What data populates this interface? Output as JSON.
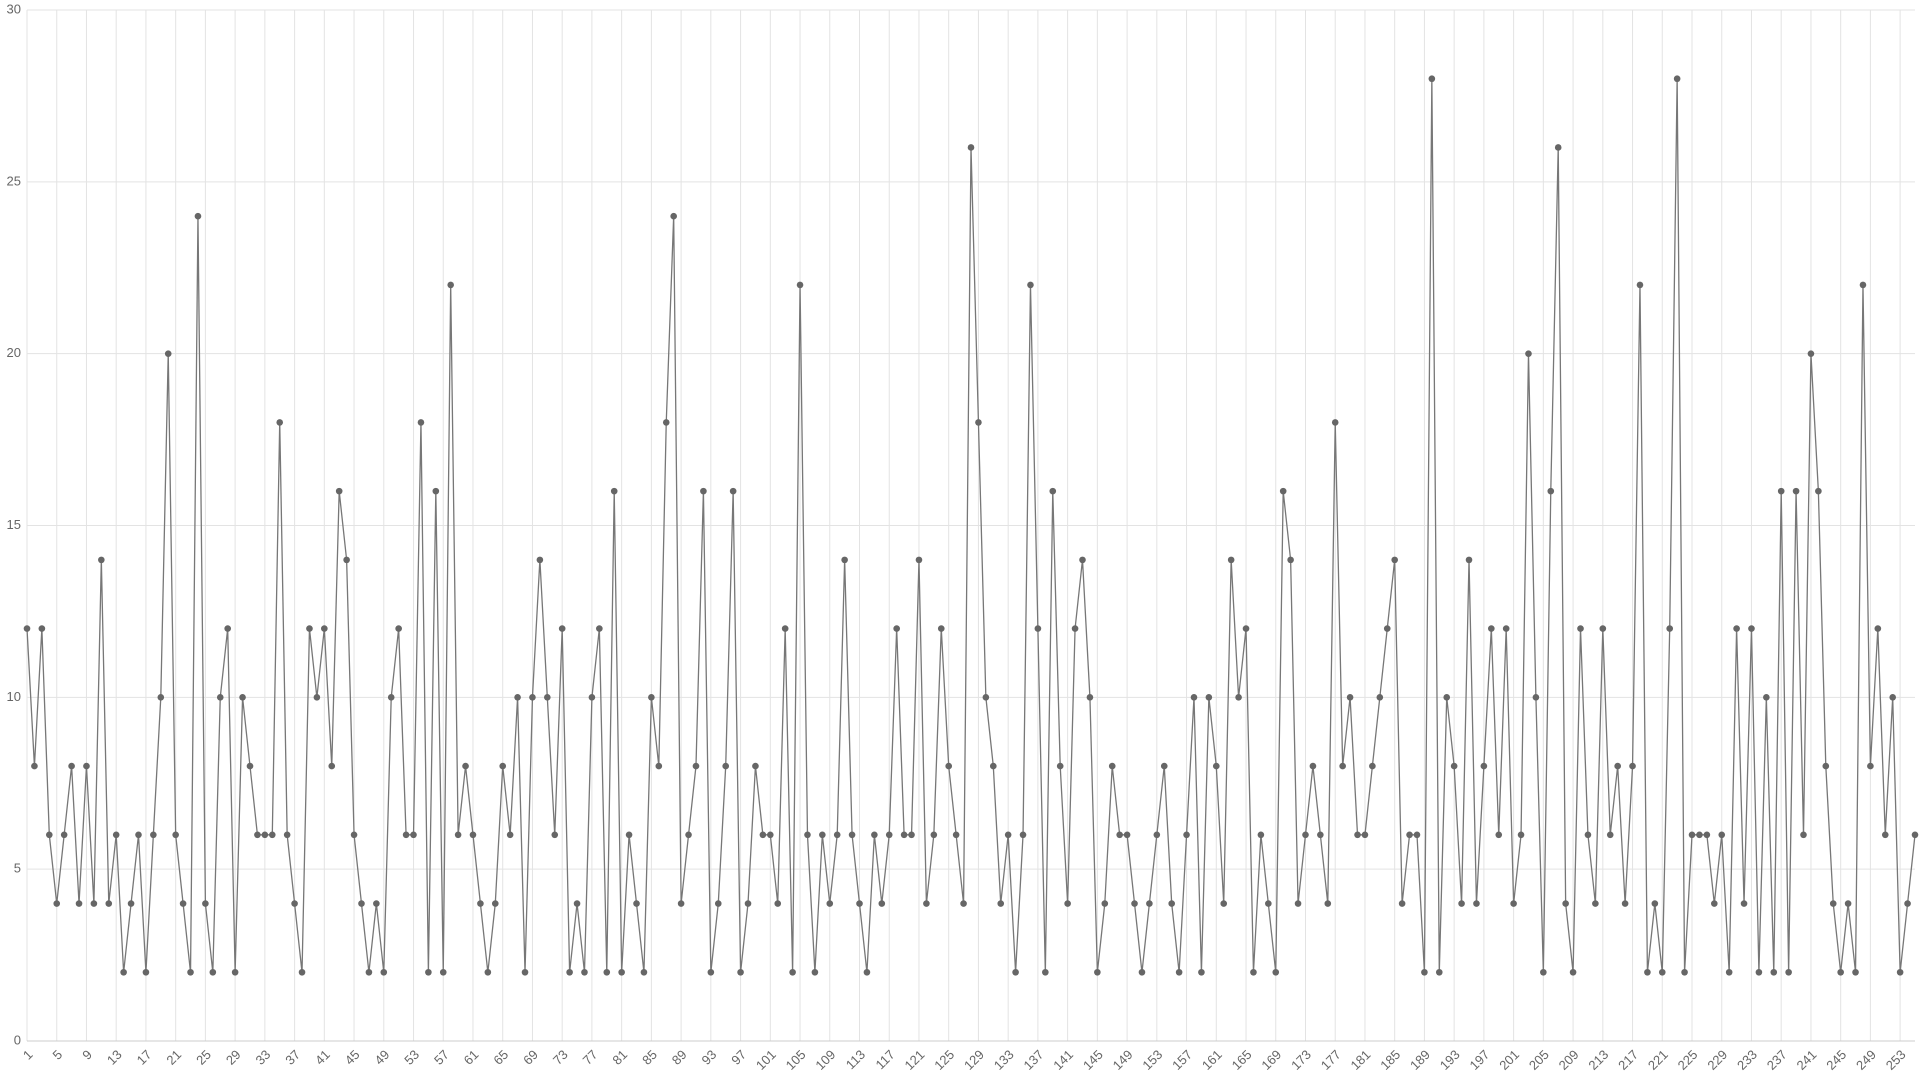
{
  "chart_data": {
    "type": "line",
    "categories": [
      1,
      null,
      null,
      null,
      5,
      null,
      null,
      null,
      9,
      null,
      null,
      null,
      13,
      null,
      null,
      null,
      17,
      null,
      null,
      null,
      21,
      null,
      null,
      null,
      25,
      null,
      null,
      null,
      29,
      null,
      null,
      null,
      33,
      null,
      null,
      null,
      37,
      null,
      null,
      null,
      41,
      null,
      null,
      null,
      45,
      null,
      null,
      null,
      49,
      null,
      null,
      null,
      53,
      null,
      null,
      null,
      57,
      null,
      null,
      null,
      61,
      null,
      null,
      null,
      65,
      null,
      null,
      null,
      69,
      null,
      null,
      null,
      73,
      null,
      null,
      null,
      77,
      null,
      null,
      null,
      81,
      null,
      null,
      null,
      85,
      null,
      null,
      null,
      89,
      null,
      null,
      null,
      93,
      null,
      null,
      null,
      97,
      null,
      null,
      null,
      101,
      null,
      null,
      null,
      105,
      null,
      null,
      null,
      109,
      null,
      null,
      null,
      113,
      null,
      null,
      null,
      117,
      null,
      null,
      null,
      121,
      null,
      null,
      null,
      125,
      null,
      null,
      null,
      129,
      null,
      null,
      null,
      133,
      null,
      null,
      null,
      137,
      null,
      null,
      null,
      141,
      null,
      null,
      null,
      145,
      null,
      null,
      null,
      149,
      null,
      null,
      null,
      153,
      null,
      null,
      null,
      157,
      null,
      null,
      null,
      161,
      null,
      null,
      null,
      165,
      null,
      null,
      null,
      169,
      null,
      null,
      null,
      173,
      null,
      null,
      null,
      177,
      null,
      null,
      null,
      181,
      null,
      null,
      null,
      185,
      null,
      null,
      null,
      189,
      null,
      null,
      null,
      193,
      null,
      null,
      null,
      197,
      null,
      null,
      null,
      201,
      null,
      null,
      null,
      205,
      null,
      null,
      null,
      209,
      null,
      null,
      null,
      213,
      null,
      null,
      null,
      217,
      null,
      null,
      null,
      221,
      null,
      null,
      null,
      225,
      null,
      null,
      null,
      229,
      null,
      null,
      null,
      233,
      null,
      null,
      null,
      237,
      null,
      null,
      null,
      241,
      null,
      null,
      null,
      245,
      null,
      null,
      null,
      249,
      null,
      null,
      null,
      253,
      null,
      null
    ],
    "values": [
      12,
      8,
      12,
      6,
      4,
      6,
      8,
      4,
      8,
      4,
      14,
      4,
      6,
      2,
      4,
      6,
      2,
      6,
      10,
      20,
      6,
      4,
      2,
      24,
      4,
      2,
      10,
      12,
      2,
      10,
      8,
      6,
      6,
      6,
      18,
      6,
      4,
      2,
      12,
      10,
      12,
      8,
      16,
      14,
      6,
      4,
      2,
      4,
      2,
      10,
      12,
      6,
      6,
      18,
      2,
      16,
      2,
      22,
      6,
      8,
      6,
      4,
      2,
      4,
      8,
      6,
      10,
      2,
      10,
      14,
      10,
      6,
      12,
      2,
      4,
      2,
      10,
      12,
      2,
      16,
      2,
      6,
      4,
      2,
      10,
      8,
      18,
      24,
      4,
      6,
      8,
      16,
      2,
      4,
      8,
      16,
      2,
      4,
      8,
      6,
      6,
      4,
      12,
      2,
      22,
      6,
      2,
      6,
      4,
      6,
      14,
      6,
      4,
      2,
      6,
      4,
      6,
      12,
      6,
      6,
      14,
      4,
      6,
      12,
      8,
      6,
      4,
      26,
      18,
      10,
      8,
      4,
      6,
      2,
      6,
      22,
      12,
      2,
      16,
      8,
      4,
      12,
      14,
      10,
      2,
      4,
      8,
      6,
      6,
      4,
      2,
      4,
      6,
      8,
      4,
      2,
      6,
      10,
      2,
      10,
      8,
      4,
      14,
      10,
      12,
      2,
      6,
      4,
      2,
      16,
      14,
      4,
      6,
      8,
      6,
      4,
      18,
      8,
      10,
      6,
      6,
      8,
      10,
      12,
      14,
      4,
      6,
      6,
      2,
      28,
      2,
      10,
      8,
      4,
      14,
      4,
      8,
      12,
      6,
      12,
      4,
      6,
      20,
      10,
      2,
      16,
      26,
      4,
      2,
      12,
      6,
      4,
      12,
      6,
      8,
      4,
      8,
      22,
      2,
      4,
      2,
      12,
      28,
      2,
      6,
      6,
      6,
      4,
      6,
      2,
      12,
      4,
      12,
      2,
      10,
      2,
      16,
      2,
      16,
      6,
      20,
      16,
      8,
      4,
      2,
      4,
      2,
      22,
      8,
      12,
      6,
      10,
      2,
      4,
      6
    ],
    "color": "#777777",
    "marker_color": "#666666",
    "ylim": [
      0,
      30
    ],
    "yticks": [
      0,
      5,
      10,
      15,
      20,
      25,
      30
    ],
    "grid": true
  }
}
